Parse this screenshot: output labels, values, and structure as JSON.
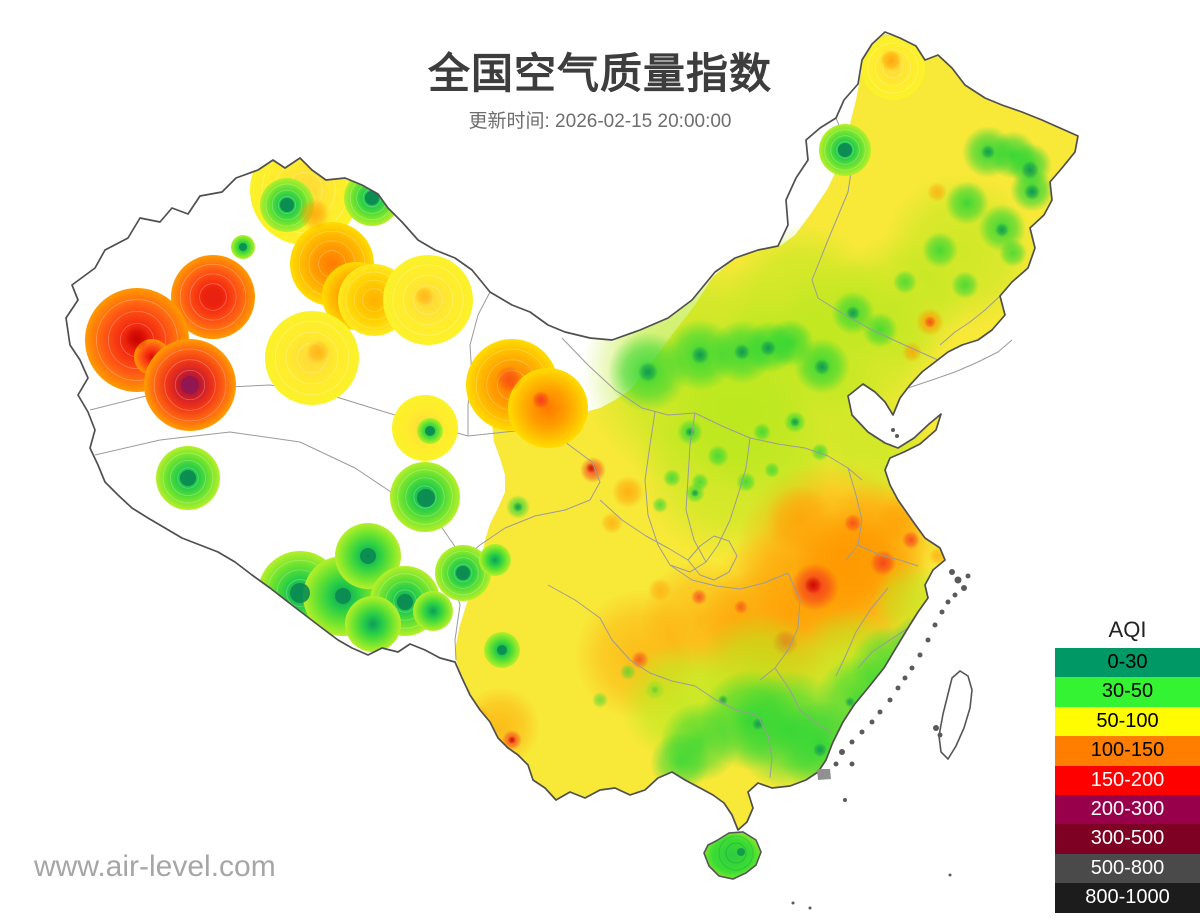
{
  "header": {
    "title": "全国空气质量指数",
    "subtitle": "更新时间: 2026-02-15 20:00:00"
  },
  "legend": {
    "title": "AQI",
    "items": [
      {
        "label": "0-30",
        "color": "#009966",
        "text_color": "#000000"
      },
      {
        "label": "30-50",
        "color": "#33F333",
        "text_color": "#000000"
      },
      {
        "label": "50-100",
        "color": "#FFFB00",
        "text_color": "#000000"
      },
      {
        "label": "100-150",
        "color": "#FF7E00",
        "text_color": "#000000"
      },
      {
        "label": "150-200",
        "color": "#FF0000",
        "text_color": "#ffffff"
      },
      {
        "label": "200-300",
        "color": "#99004C",
        "text_color": "#ffffff"
      },
      {
        "label": "300-500",
        "color": "#7E0023",
        "text_color": "#ffffff"
      },
      {
        "label": "500-800",
        "color": "#4A4A4A",
        "text_color": "#ffffff"
      },
      {
        "label": "800-1000",
        "color": "#1C1C1C",
        "text_color": "#ffffff"
      }
    ]
  },
  "footer": {
    "watermark": "www.air-level.com"
  }
}
